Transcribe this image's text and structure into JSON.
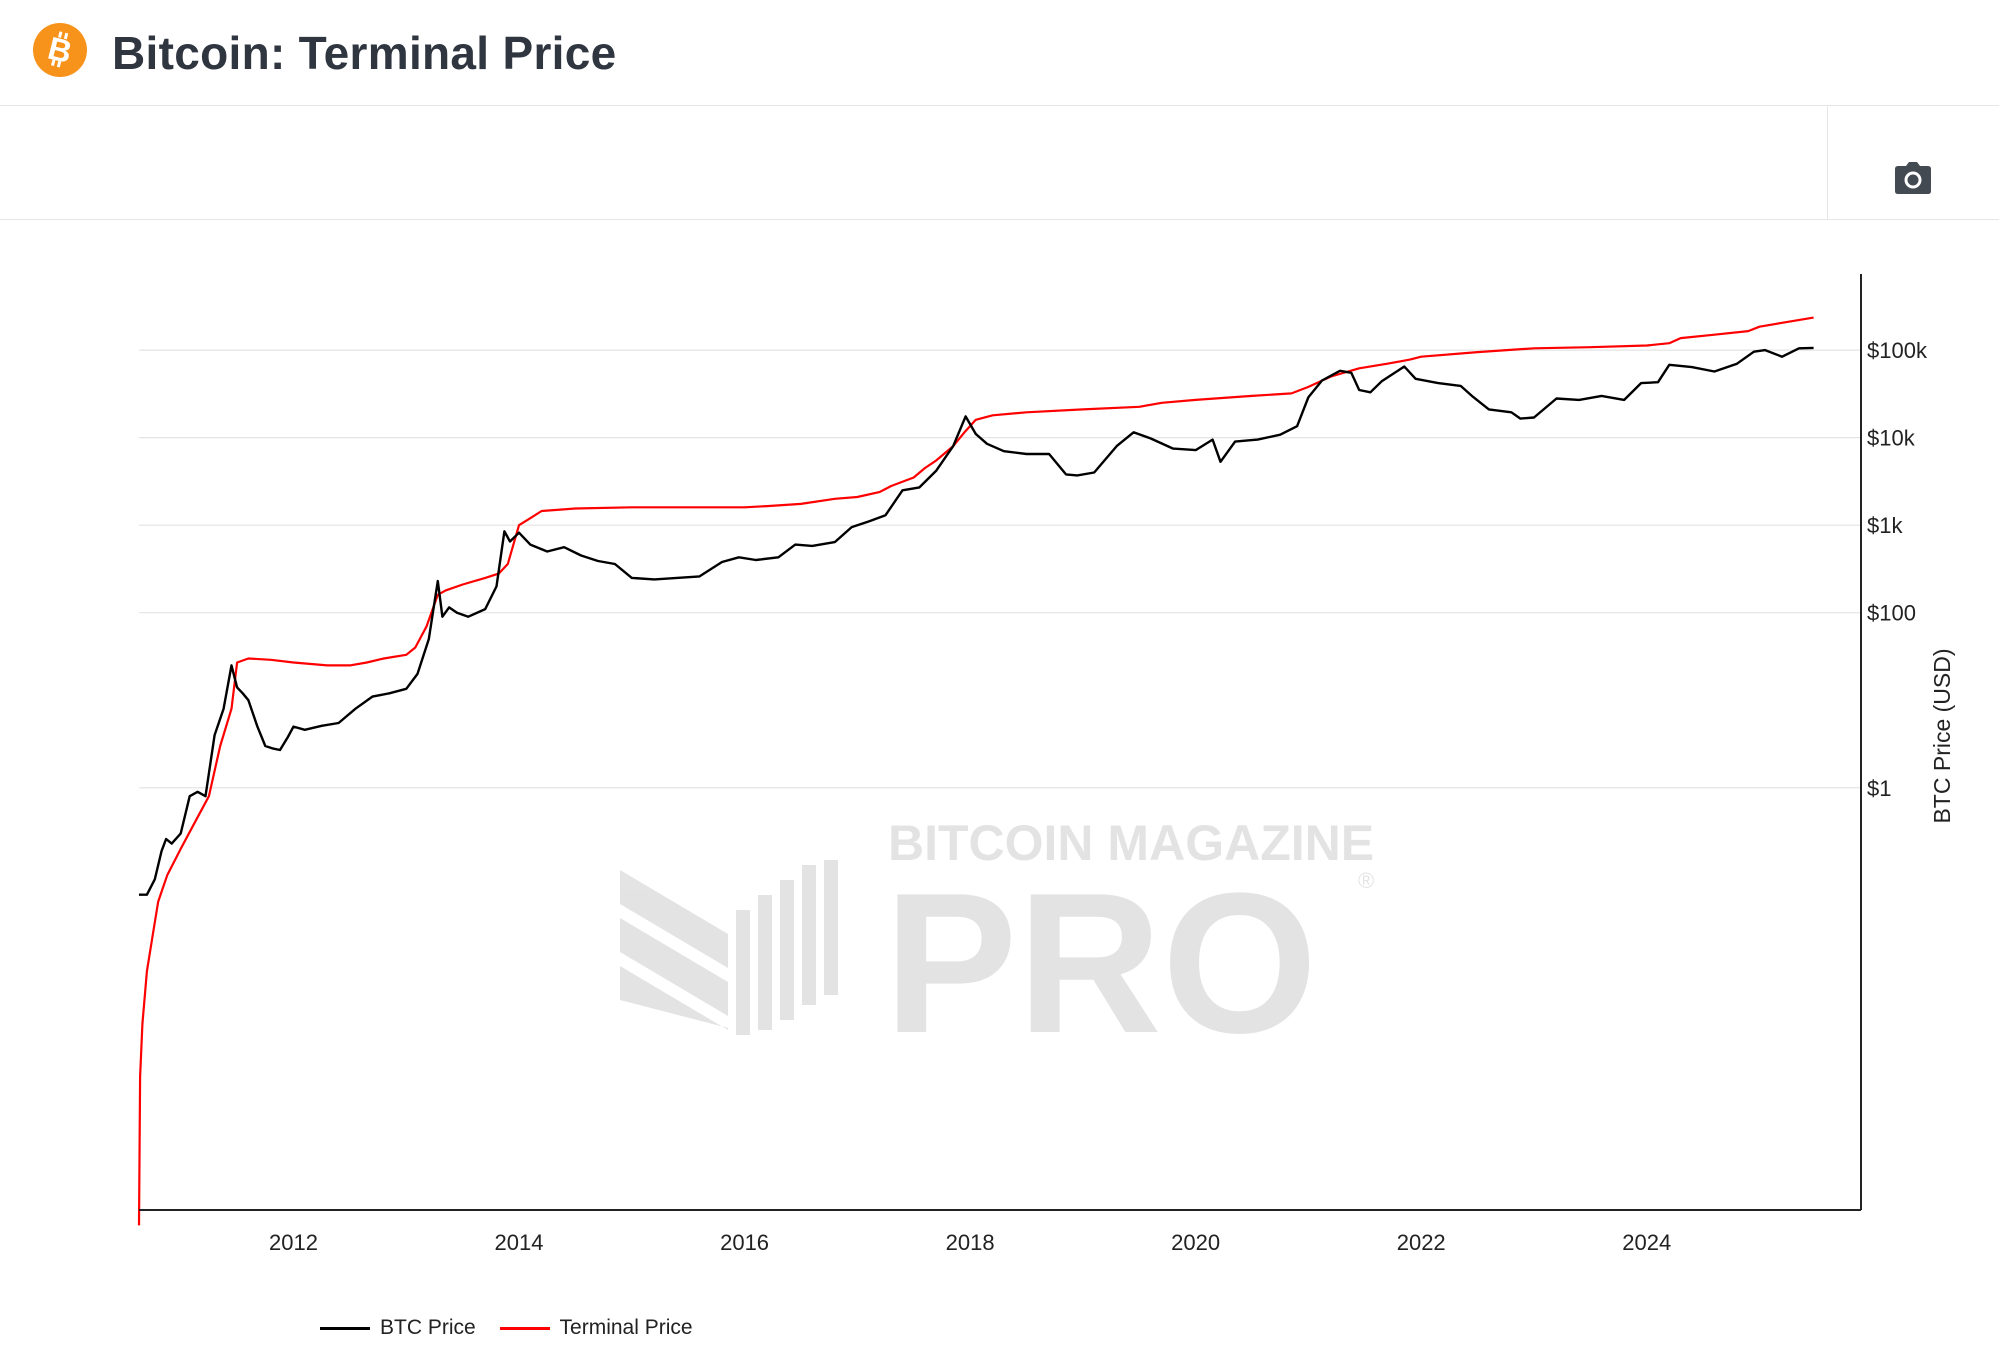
{
  "header": {
    "title": "Bitcoin: Terminal Price",
    "logo_icon": "bitcoin-icon",
    "logo_color": "#f7931a"
  },
  "toolbar": {
    "camera_icon": "camera-icon"
  },
  "watermark": {
    "brand": "BITCOIN MAGAZINE",
    "product": "PRO",
    "registered": "®"
  },
  "chart_data": {
    "type": "line",
    "title": "Bitcoin: Terminal Price",
    "xlabel": "",
    "ylabel": "BTC Price (USD)",
    "y_scale": "log",
    "xlim": [
      2010.63,
      2025.9
    ],
    "ylim": [
      1.5e-05,
      600000
    ],
    "x_ticks": [
      2012,
      2014,
      2016,
      2018,
      2020,
      2022,
      2024
    ],
    "x_tick_labels": [
      "2012",
      "2014",
      "2016",
      "2018",
      "2020",
      "2022",
      "2024"
    ],
    "y_ticks": [
      1,
      100,
      1000,
      10000,
      100000
    ],
    "y_tick_labels": [
      "$1",
      "$100",
      "$1k",
      "$10k",
      "$100k"
    ],
    "y_axis_side": "right",
    "grid": true,
    "legend_position": "bottom-left",
    "series": [
      {
        "name": "BTC Price",
        "color": "#000000",
        "x": [
          2010.63,
          2010.7,
          2010.77,
          2010.83,
          2010.87,
          2010.92,
          2011.0,
          2011.08,
          2011.15,
          2011.22,
          2011.3,
          2011.38,
          2011.45,
          2011.5,
          2011.55,
          2011.6,
          2011.68,
          2011.75,
          2011.82,
          2011.88,
          2011.95,
          2012.0,
          2012.1,
          2012.25,
          2012.4,
          2012.55,
          2012.7,
          2012.85,
          2013.0,
          2013.1,
          2013.2,
          2013.28,
          2013.32,
          2013.38,
          2013.45,
          2013.55,
          2013.7,
          2013.8,
          2013.87,
          2013.92,
          2014.0,
          2014.1,
          2014.25,
          2014.4,
          2014.55,
          2014.7,
          2014.85,
          2015.0,
          2015.2,
          2015.4,
          2015.6,
          2015.8,
          2015.95,
          2016.1,
          2016.3,
          2016.45,
          2016.6,
          2016.8,
          2016.95,
          2017.1,
          2017.25,
          2017.4,
          2017.55,
          2017.7,
          2017.85,
          2017.96,
          2018.05,
          2018.15,
          2018.3,
          2018.5,
          2018.7,
          2018.85,
          2018.95,
          2019.1,
          2019.3,
          2019.45,
          2019.6,
          2019.8,
          2020.0,
          2020.15,
          2020.22,
          2020.35,
          2020.55,
          2020.75,
          2020.9,
          2021.0,
          2021.12,
          2021.28,
          2021.38,
          2021.45,
          2021.55,
          2021.65,
          2021.85,
          2021.95,
          2022.15,
          2022.35,
          2022.45,
          2022.6,
          2022.8,
          2022.88,
          2023.0,
          2023.2,
          2023.4,
          2023.6,
          2023.8,
          2023.95,
          2024.1,
          2024.2,
          2024.4,
          2024.6,
          2024.8,
          2024.95,
          2025.05,
          2025.2,
          2025.35,
          2025.48
        ],
        "y": [
          0.06,
          0.06,
          0.09,
          0.19,
          0.26,
          0.23,
          0.3,
          0.8,
          0.9,
          0.8,
          4.0,
          8.0,
          25.0,
          14.0,
          12.0,
          10.0,
          5.0,
          3.0,
          2.8,
          2.7,
          3.8,
          5.0,
          4.6,
          5.1,
          5.5,
          8.0,
          11.0,
          12.0,
          13.5,
          20.0,
          50.0,
          230.0,
          90.0,
          115.0,
          100.0,
          90.0,
          110.0,
          200.0,
          850.0,
          650.0,
          820.0,
          600.0,
          500.0,
          560.0,
          450.0,
          390.0,
          360.0,
          250.0,
          240.0,
          250.0,
          260.0,
          380.0,
          430.0,
          400.0,
          430.0,
          600.0,
          580.0,
          640.0,
          950.0,
          1100.0,
          1300.0,
          2500.0,
          2700.0,
          4200.0,
          8000.0,
          17500.0,
          11000.0,
          8500.0,
          7000.0,
          6500.0,
          6500.0,
          3800.0,
          3700.0,
          4000.0,
          8000.0,
          11500.0,
          9800.0,
          7500.0,
          7200.0,
          9500.0,
          5300.0,
          9000.0,
          9500.0,
          10800.0,
          13500.0,
          29000.0,
          45000.0,
          58000.0,
          55000.0,
          35000.0,
          33000.0,
          44000.0,
          65000.0,
          47000.0,
          42000.0,
          39000.0,
          30000.0,
          21000.0,
          19500.0,
          16500.0,
          17000.0,
          28000.0,
          27000.0,
          30000.0,
          27000.0,
          42000.0,
          43000.0,
          68000.0,
          64000.0,
          57000.0,
          70000.0,
          96000.0,
          100000.0,
          84000.0,
          105000.0,
          106000.0
        ]
      },
      {
        "name": "Terminal Price",
        "color": "#ff0000",
        "x": [
          2010.63,
          2010.64,
          2010.66,
          2010.7,
          2010.75,
          2010.8,
          2010.88,
          2011.0,
          2011.1,
          2011.25,
          2011.35,
          2011.45,
          2011.5,
          2011.6,
          2011.8,
          2012.0,
          2012.3,
          2012.5,
          2012.65,
          2012.8,
          2013.0,
          2013.08,
          2013.18,
          2013.28,
          2013.35,
          2013.5,
          2013.7,
          2013.82,
          2013.9,
          2014.0,
          2014.1,
          2014.2,
          2014.5,
          2015.0,
          2015.5,
          2016.0,
          2016.2,
          2016.5,
          2016.8,
          2017.0,
          2017.2,
          2017.3,
          2017.5,
          2017.6,
          2017.7,
          2017.85,
          2017.95,
          2018.05,
          2018.2,
          2018.5,
          2019.0,
          2019.5,
          2019.7,
          2020.0,
          2020.5,
          2020.85,
          2021.0,
          2021.2,
          2021.45,
          2021.7,
          2021.9,
          2022.0,
          2022.5,
          2023.0,
          2023.5,
          2024.0,
          2024.2,
          2024.3,
          2024.6,
          2024.9,
          2025.0,
          2025.2,
          2025.48
        ],
        "y": [
          1e-05,
          0.0005,
          0.002,
          0.008,
          0.02,
          0.05,
          0.1,
          0.2,
          0.35,
          0.8,
          3.0,
          8.0,
          27.0,
          30.0,
          29.0,
          27.0,
          25.0,
          25.0,
          27.0,
          30.0,
          33.0,
          40.0,
          70.0,
          160.0,
          180.0,
          210.0,
          250.0,
          280.0,
          360.0,
          1000.0,
          1200.0,
          1450.0,
          1550.0,
          1600.0,
          1600.0,
          1600.0,
          1650.0,
          1750.0,
          2000.0,
          2100.0,
          2400.0,
          2800.0,
          3500.0,
          4500.0,
          5500.0,
          8000.0,
          11500.0,
          16000.0,
          18000.0,
          19500.0,
          21000.0,
          22500.0,
          25000.0,
          27000.0,
          30000.0,
          32000.0,
          38000.0,
          50000.0,
          62000.0,
          70000.0,
          78000.0,
          84000.0,
          95000.0,
          105000.0,
          108000.0,
          113000.0,
          120000.0,
          137000.0,
          150000.0,
          165000.0,
          185000.0,
          205000.0,
          235000.0
        ]
      }
    ]
  }
}
